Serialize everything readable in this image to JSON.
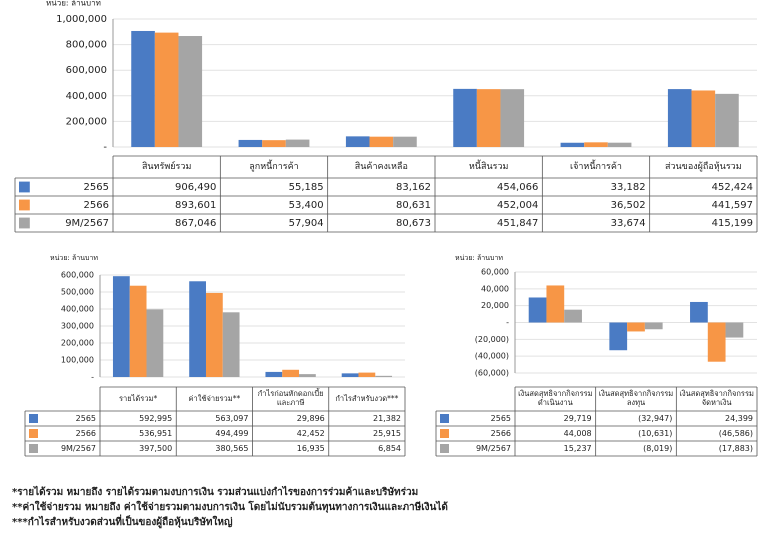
{
  "chart_data": [
    {
      "type": "bar",
      "unit": "หน่วย: ล้านบาท",
      "categories": [
        "สินทรัพย์รวม",
        "ลูกหนี้การค้า",
        "สินค้าคงเหลือ",
        "หนี้สินรวม",
        "เจ้าหนี้การค้า",
        "ส่วนของผู้ถือหุ้นรวม"
      ],
      "series": [
        {
          "name": "2565",
          "color": "#4a7bc4",
          "values": [
            906490,
            55185,
            83162,
            454066,
            33182,
            452424
          ],
          "value_labels": [
            "906,490",
            "55,185",
            "83,162",
            "454,066",
            "33,182",
            "452,424"
          ]
        },
        {
          "name": "2566",
          "color": "#f79646",
          "values": [
            893601,
            53400,
            80631,
            452004,
            36502,
            441597
          ],
          "value_labels": [
            "893,601",
            "53,400",
            "80,631",
            "452,004",
            "36,502",
            "441,597"
          ]
        },
        {
          "name": "9M/2567",
          "color": "#a5a5a5",
          "values": [
            867046,
            57904,
            80673,
            451847,
            33674,
            415199
          ],
          "value_labels": [
            "867,046",
            "57,904",
            "80,673",
            "451,847",
            "33,674",
            "415,199"
          ]
        }
      ],
      "ylim": [
        0,
        1000000
      ],
      "yticks": [
        {
          "value": 0,
          "label": "-"
        },
        {
          "value": 200000,
          "label": "200,000"
        },
        {
          "value": 400000,
          "label": "400,000"
        },
        {
          "value": 600000,
          "label": "600,000"
        },
        {
          "value": 800000,
          "label": "800,000"
        },
        {
          "value": 1000000,
          "label": "1,000,000"
        }
      ],
      "grid": true
    },
    {
      "type": "bar",
      "unit": "หน่วย: ล้านบาท",
      "categories": [
        "รายได้รวม*",
        "ค่าใช้จ่ายรวม**",
        "กำไรก่อนหักดอกเบี้ยและภาษี",
        "กำไรสำหรับงวด***"
      ],
      "series": [
        {
          "name": "2565",
          "color": "#4a7bc4",
          "values": [
            592995,
            563097,
            29896,
            21382
          ],
          "value_labels": [
            "592,995",
            "563,097",
            "29,896",
            "21,382"
          ]
        },
        {
          "name": "2566",
          "color": "#f79646",
          "values": [
            536951,
            494499,
            42452,
            25915
          ],
          "value_labels": [
            "536,951",
            "494,499",
            "42,452",
            "25,915"
          ]
        },
        {
          "name": "9M/2567",
          "color": "#a5a5a5",
          "values": [
            397500,
            380565,
            16935,
            6854
          ],
          "value_labels": [
            "397,500",
            "380,565",
            "16,935",
            "6,854"
          ]
        }
      ],
      "ylim": [
        0,
        600000
      ],
      "yticks": [
        {
          "value": 0,
          "label": "-"
        },
        {
          "value": 100000,
          "label": "100,000"
        },
        {
          "value": 200000,
          "label": "200,000"
        },
        {
          "value": 300000,
          "label": "300,000"
        },
        {
          "value": 400000,
          "label": "400,000"
        },
        {
          "value": 500000,
          "label": "500,000"
        },
        {
          "value": 600000,
          "label": "600,000"
        }
      ],
      "grid": true
    },
    {
      "type": "bar",
      "unit": "หน่วย: ล้านบาท",
      "categories": [
        "เงินสดสุทธิจากกิจกรรมดำเนินงาน",
        "เงินสดสุทธิจากกิจกรรมลงทุน",
        "เงินสดสุทธิจากกิจกรรมจัดหาเงิน"
      ],
      "series": [
        {
          "name": "2565",
          "color": "#4a7bc4",
          "values": [
            29719,
            -32947,
            24399
          ],
          "value_labels": [
            "29,719",
            "(32,947)",
            "24,399"
          ]
        },
        {
          "name": "2566",
          "color": "#f79646",
          "values": [
            44008,
            -10631,
            -46586
          ],
          "value_labels": [
            "44,008",
            "(10,631)",
            "(46,586)"
          ]
        },
        {
          "name": "9M/2567",
          "color": "#a5a5a5",
          "values": [
            15237,
            -8019,
            -17883
          ],
          "value_labels": [
            "15,237",
            "(8,019)",
            "(17,883)"
          ]
        }
      ],
      "ylim": [
        -60000,
        60000
      ],
      "yticks": [
        {
          "value": -60000,
          "label": "(60,000)"
        },
        {
          "value": -40000,
          "label": "(40,000)"
        },
        {
          "value": -20000,
          "label": "(20,000)"
        },
        {
          "value": 0,
          "label": "-"
        },
        {
          "value": 20000,
          "label": "20,000"
        },
        {
          "value": 40000,
          "label": "40,000"
        },
        {
          "value": 60000,
          "label": "60,000"
        }
      ],
      "grid": true
    }
  ],
  "notes": [
    "*รายได้รวม หมายถึง รายได้รวมตามงบการเงิน รวมส่วนแบ่งกำไรของการร่วมค้าและบริษัทร่วม",
    "**ค่าใช้จ่ายรวม หมายถึง ค่าใช้จ่ายรวมตามงบการเงิน โดยไม่นับรวมต้นทุนทางการเงินและภาษีเงินได้",
    "***กำไรสำหรับงวดส่วนที่เป็นของผู้ถือหุ้นบริษัทใหญ่"
  ]
}
